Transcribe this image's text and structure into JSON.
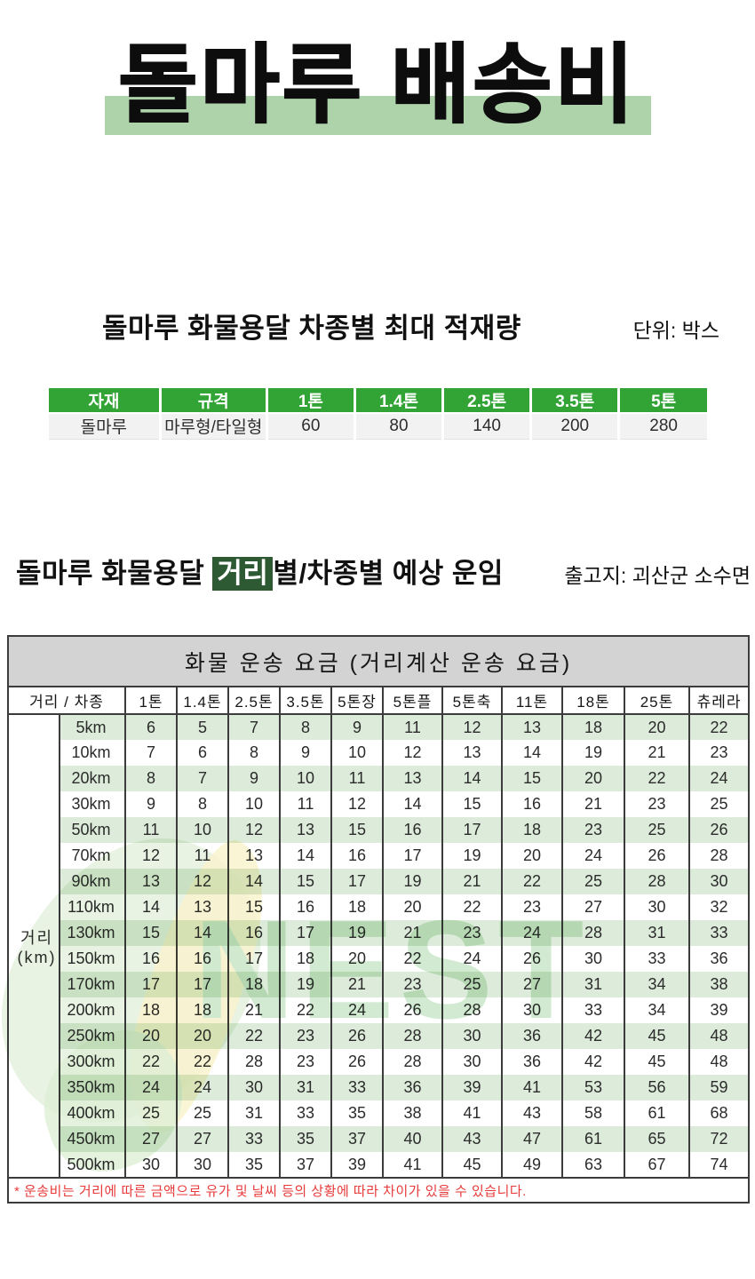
{
  "page_title": "돌마루 배송비",
  "capacity_section": {
    "title": "돌마루 화물용달 차종별 최대 적재량",
    "unit_label": "단위: 박스",
    "table": {
      "headers": [
        "자재",
        "규격",
        "1톤",
        "1.4톤",
        "2.5톤",
        "3.5톤",
        "5톤"
      ],
      "rows": [
        [
          "돌마루",
          "마루형/타일형",
          "60",
          "80",
          "140",
          "200",
          "280"
        ]
      ]
    }
  },
  "fare_section": {
    "title_prefix": "돌마루 화물용달 ",
    "title_highlight": "거리",
    "title_suffix": "별/차종별 예상 운임",
    "origin_label": "출고지: 괴산군 소수면",
    "table": {
      "title": "화물 운송 요금 (거리계산 운송 요금)",
      "corner_header": "거리 / 차종",
      "axis_label_line1": "거리",
      "axis_label_line2": "(km)",
      "vehicle_headers": [
        "1톤",
        "1.4톤",
        "2.5톤",
        "3.5톤",
        "5톤장",
        "5톤플",
        "5톤축",
        "11톤",
        "18톤",
        "25톤",
        "츄레라"
      ],
      "rows": [
        {
          "distance": "5km",
          "fares": [
            6,
            5,
            7,
            8,
            9,
            11,
            12,
            13,
            18,
            20,
            22
          ]
        },
        {
          "distance": "10km",
          "fares": [
            7,
            6,
            8,
            9,
            10,
            12,
            13,
            14,
            19,
            21,
            23
          ]
        },
        {
          "distance": "20km",
          "fares": [
            8,
            7,
            9,
            10,
            11,
            13,
            14,
            15,
            20,
            22,
            24
          ]
        },
        {
          "distance": "30km",
          "fares": [
            9,
            8,
            10,
            11,
            12,
            14,
            15,
            16,
            21,
            23,
            25
          ]
        },
        {
          "distance": "50km",
          "fares": [
            11,
            10,
            12,
            13,
            15,
            16,
            17,
            18,
            23,
            25,
            26
          ]
        },
        {
          "distance": "70km",
          "fares": [
            12,
            11,
            13,
            14,
            16,
            17,
            19,
            20,
            24,
            26,
            28
          ]
        },
        {
          "distance": "90km",
          "fares": [
            13,
            12,
            14,
            15,
            17,
            19,
            21,
            22,
            25,
            28,
            30
          ]
        },
        {
          "distance": "110km",
          "fares": [
            14,
            13,
            15,
            16,
            18,
            20,
            22,
            23,
            27,
            30,
            32
          ]
        },
        {
          "distance": "130km",
          "fares": [
            15,
            14,
            16,
            17,
            19,
            21,
            23,
            24,
            28,
            31,
            33
          ]
        },
        {
          "distance": "150km",
          "fares": [
            16,
            16,
            17,
            18,
            20,
            22,
            24,
            26,
            30,
            33,
            36
          ]
        },
        {
          "distance": "170km",
          "fares": [
            17,
            17,
            18,
            19,
            21,
            23,
            25,
            27,
            31,
            34,
            38
          ]
        },
        {
          "distance": "200km",
          "fares": [
            18,
            18,
            21,
            22,
            24,
            26,
            28,
            30,
            33,
            34,
            39
          ]
        },
        {
          "distance": "250km",
          "fares": [
            20,
            20,
            22,
            23,
            26,
            28,
            30,
            36,
            42,
            45,
            48
          ]
        },
        {
          "distance": "300km",
          "fares": [
            22,
            22,
            28,
            23,
            26,
            28,
            30,
            36,
            42,
            45,
            48
          ]
        },
        {
          "distance": "350km",
          "fares": [
            24,
            24,
            30,
            31,
            33,
            36,
            39,
            41,
            53,
            56,
            59
          ]
        },
        {
          "distance": "400km",
          "fares": [
            25,
            25,
            31,
            33,
            35,
            38,
            41,
            43,
            58,
            61,
            68
          ]
        },
        {
          "distance": "450km",
          "fares": [
            27,
            27,
            33,
            35,
            37,
            40,
            43,
            47,
            61,
            65,
            72
          ]
        },
        {
          "distance": "500km",
          "fares": [
            30,
            30,
            35,
            37,
            39,
            41,
            45,
            49,
            63,
            67,
            74
          ]
        }
      ],
      "footnote": "* 운송비는 거리에 따른 금액으로 유가 및 날씨 등의 상황에 따라 차이가 있을 수 있습니다."
    }
  },
  "watermark": {
    "text": "NEST"
  },
  "colors": {
    "accent_green": "#32a436",
    "band_green": "#aed3ab",
    "highlight_dark_green": "#2e5a33",
    "stripe_green": "#ddecda",
    "titlebar_gray": "#d3d3d3",
    "border_dark": "#3c3c3c",
    "note_red": "#e83a3a"
  }
}
